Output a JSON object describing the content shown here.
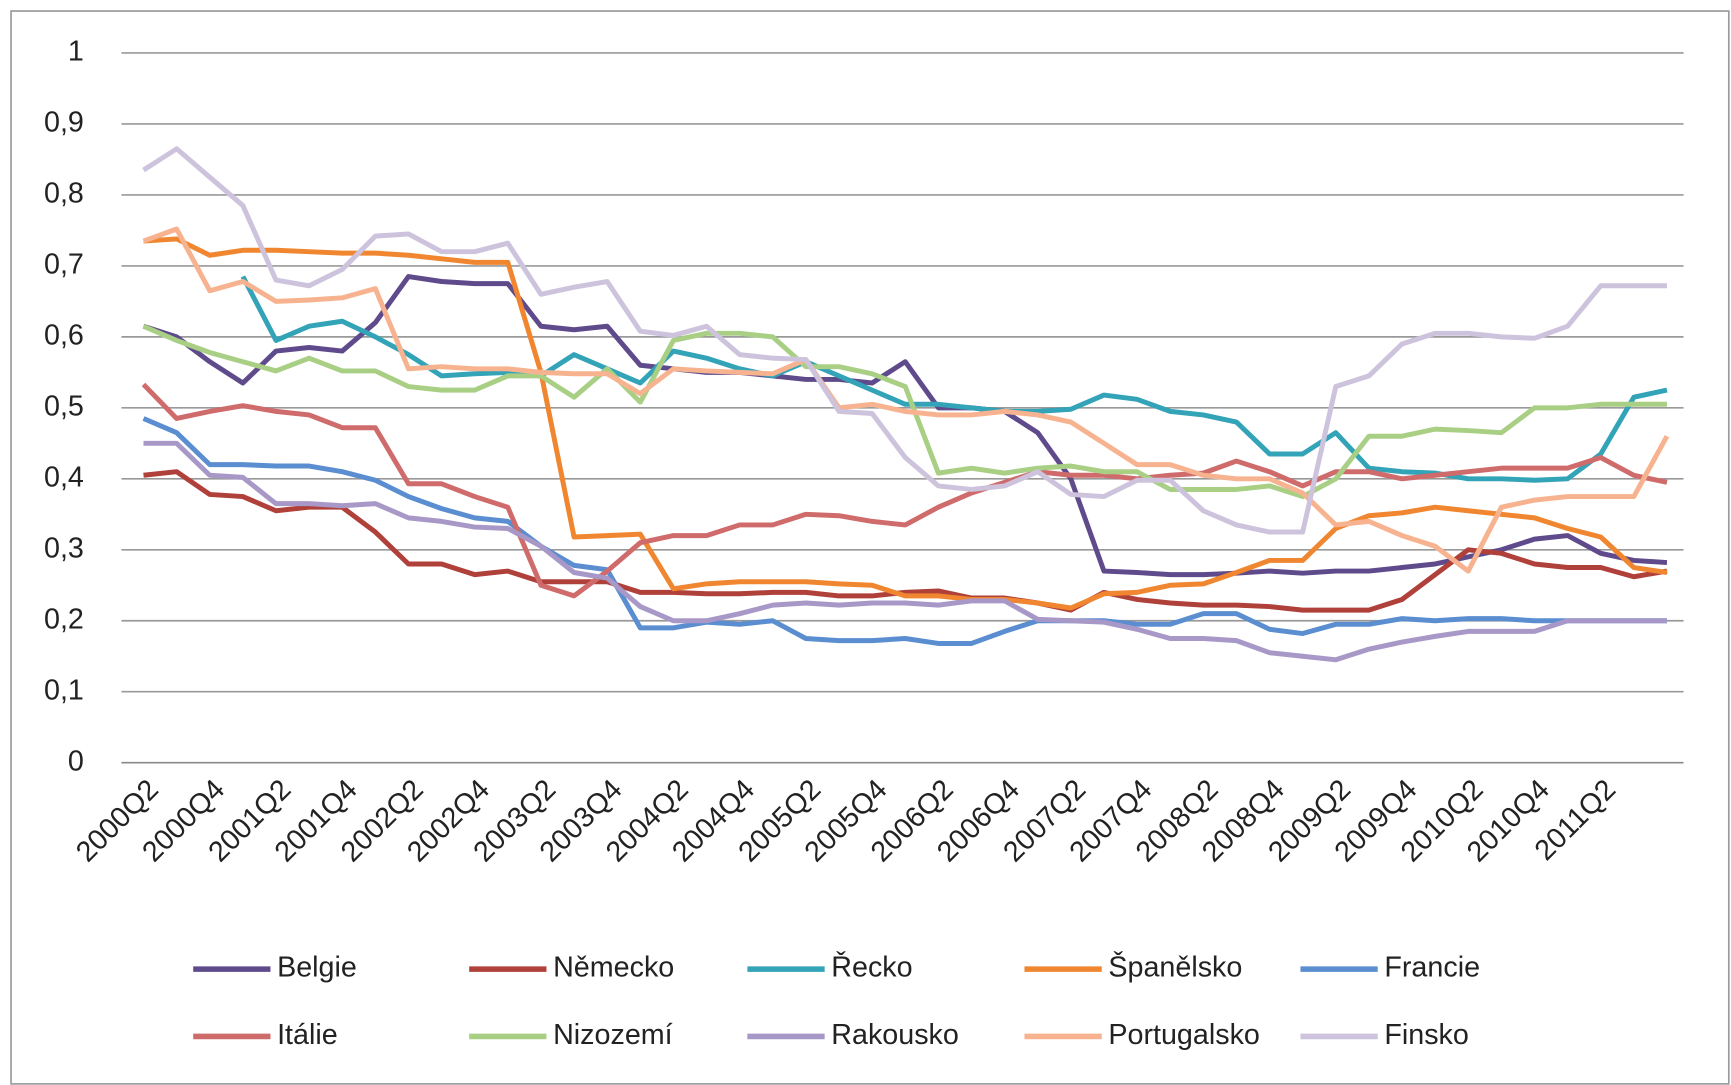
{
  "chart_data": {
    "type": "line",
    "categories": [
      "2000Q2",
      null,
      "2000Q4",
      null,
      "2001Q2",
      null,
      "2001Q4",
      null,
      "2002Q2",
      null,
      "2002Q4",
      null,
      "2003Q2",
      null,
      "2003Q4",
      null,
      "2004Q2",
      null,
      "2004Q4",
      null,
      "2005Q2",
      null,
      "2005Q4",
      null,
      "2006Q2",
      null,
      "2006Q4",
      null,
      "2007Q2",
      null,
      "2007Q4",
      null,
      "2008Q2",
      null,
      "2008Q4",
      null,
      "2009Q2",
      null,
      "2009Q4",
      null,
      "2010Q2",
      null,
      "2010Q4",
      null,
      "2011Q2",
      null,
      null
    ],
    "ylim": [
      0,
      1
    ],
    "yticks": [
      0,
      {
        "value": 0.1,
        "label": "0,1"
      },
      {
        "value": 0.2,
        "label": "0,2"
      },
      {
        "value": 0.3,
        "label": "0,3"
      },
      {
        "value": 0.4,
        "label": "0,4"
      },
      {
        "value": 0.5,
        "label": "0,5"
      },
      {
        "value": 0.6,
        "label": "0,6"
      },
      {
        "value": 0.7,
        "label": "0,7"
      },
      {
        "value": 0.8,
        "label": "0,8"
      },
      {
        "value": 0.9,
        "label": "0,9"
      },
      1
    ],
    "grid": true,
    "legend": "bottom",
    "series": [
      {
        "name": "Belgie",
        "color": "#5f4b8b",
        "values": [
          0.615,
          0.6,
          0.565,
          0.535,
          0.58,
          0.585,
          0.58,
          0.62,
          0.685,
          0.678,
          0.675,
          0.675,
          0.615,
          0.61,
          0.615,
          0.56,
          0.555,
          0.55,
          0.55,
          0.545,
          0.54,
          0.54,
          0.535,
          0.565,
          0.5,
          0.5,
          0.495,
          0.465,
          0.4,
          0.27,
          0.268,
          0.265,
          0.265,
          0.267,
          0.27,
          0.267,
          0.27,
          0.27,
          0.275,
          0.28,
          0.29,
          0.3,
          0.315,
          0.32,
          0.295,
          0.285,
          0.282
        ]
      },
      {
        "name": "Německo",
        "color": "#b0403a",
        "values": [
          0.405,
          0.41,
          0.378,
          0.375,
          0.355,
          0.36,
          0.36,
          0.325,
          0.28,
          0.28,
          0.265,
          0.27,
          0.255,
          0.255,
          0.255,
          0.24,
          0.24,
          0.238,
          0.238,
          0.24,
          0.24,
          0.235,
          0.235,
          0.24,
          0.242,
          0.232,
          0.232,
          0.225,
          0.215,
          0.24,
          0.23,
          0.225,
          0.222,
          0.222,
          0.22,
          0.215,
          0.215,
          0.215,
          0.23,
          0.265,
          0.3,
          0.295,
          0.28,
          0.275,
          0.275,
          0.262,
          0.27
        ]
      },
      {
        "name": "Řecko",
        "color": "#33a3b8",
        "values": [
          null,
          null,
          null,
          0.685,
          0.595,
          0.615,
          0.622,
          0.6,
          0.575,
          0.545,
          0.548,
          0.55,
          0.545,
          0.575,
          0.555,
          0.535,
          0.58,
          0.57,
          0.555,
          0.545,
          0.565,
          0.545,
          0.525,
          0.505,
          0.505,
          0.5,
          0.495,
          0.495,
          0.498,
          0.518,
          0.512,
          0.495,
          0.49,
          0.48,
          0.435,
          0.435,
          0.465,
          0.415,
          0.41,
          0.408,
          0.4,
          0.4,
          0.398,
          0.4,
          0.435,
          0.515,
          0.525
        ]
      },
      {
        "name": "Španělsko",
        "color": "#f0862f",
        "values": [
          0.735,
          0.738,
          0.715,
          0.722,
          0.722,
          0.72,
          0.718,
          0.718,
          0.715,
          0.71,
          0.705,
          0.705,
          0.55,
          0.318,
          0.32,
          0.322,
          0.245,
          0.252,
          0.255,
          0.255,
          0.255,
          0.252,
          0.25,
          0.235,
          0.235,
          0.23,
          0.23,
          0.225,
          0.218,
          0.238,
          0.24,
          0.25,
          0.252,
          0.268,
          0.285,
          0.285,
          0.33,
          0.348,
          0.352,
          0.36,
          0.355,
          0.35,
          0.345,
          0.33,
          0.318,
          0.275,
          0.268
        ]
      },
      {
        "name": "Francie",
        "color": "#5a8ed0",
        "values": [
          0.485,
          0.465,
          0.42,
          0.42,
          0.418,
          0.418,
          0.41,
          0.398,
          0.375,
          0.358,
          0.345,
          0.34,
          0.305,
          0.278,
          0.272,
          0.19,
          0.19,
          0.198,
          0.195,
          0.2,
          0.175,
          0.172,
          0.172,
          0.175,
          0.168,
          0.168,
          0.185,
          0.2,
          0.2,
          0.2,
          0.195,
          0.195,
          0.21,
          0.21,
          0.188,
          0.182,
          0.195,
          0.195,
          0.203,
          0.2,
          0.203,
          0.203,
          0.2,
          0.2,
          0.2,
          0.2,
          0.2
        ]
      },
      {
        "name": "Itálie",
        "color": "#d06b6b",
        "values": [
          0.533,
          0.485,
          0.495,
          0.503,
          0.495,
          0.49,
          0.472,
          0.472,
          0.393,
          0.393,
          0.375,
          0.36,
          0.25,
          0.235,
          0.27,
          0.31,
          0.32,
          0.32,
          0.335,
          0.335,
          0.35,
          0.348,
          0.34,
          0.335,
          0.36,
          0.38,
          0.395,
          0.41,
          0.405,
          0.405,
          0.4,
          0.405,
          0.408,
          0.425,
          0.41,
          0.39,
          0.41,
          0.41,
          0.4,
          0.405,
          0.41,
          0.415,
          0.415,
          0.415,
          0.43,
          0.405,
          0.395
        ]
      },
      {
        "name": "Nizozemí",
        "color": "#a9cf85",
        "values": [
          0.615,
          0.595,
          0.578,
          0.565,
          0.552,
          0.57,
          0.552,
          0.552,
          0.53,
          0.525,
          0.525,
          0.545,
          0.545,
          0.515,
          0.555,
          0.508,
          0.595,
          0.605,
          0.605,
          0.6,
          0.558,
          0.558,
          0.548,
          0.53,
          0.408,
          0.415,
          0.408,
          0.415,
          0.418,
          0.41,
          0.41,
          0.385,
          0.385,
          0.385,
          0.39,
          0.375,
          0.4,
          0.46,
          0.46,
          0.47,
          0.468,
          0.465,
          0.5,
          0.5,
          0.505,
          0.505,
          0.505
        ]
      },
      {
        "name": "Rakousko",
        "color": "#a898c8",
        "values": [
          0.45,
          0.45,
          0.405,
          0.402,
          0.365,
          0.365,
          0.362,
          0.365,
          0.345,
          0.34,
          0.332,
          0.33,
          0.305,
          0.268,
          0.26,
          0.22,
          0.2,
          0.2,
          0.21,
          0.222,
          0.225,
          0.222,
          0.225,
          0.225,
          0.222,
          0.228,
          0.228,
          0.202,
          0.2,
          0.198,
          0.188,
          0.175,
          0.175,
          0.172,
          0.155,
          0.15,
          0.145,
          0.16,
          0.17,
          0.178,
          0.185,
          0.185,
          0.185,
          0.2,
          0.2,
          0.2,
          0.2
        ]
      },
      {
        "name": "Portugalsko",
        "color": "#f7b38f",
        "values": [
          0.735,
          0.752,
          0.665,
          0.678,
          0.65,
          0.652,
          0.655,
          0.668,
          0.555,
          0.558,
          0.555,
          0.555,
          0.55,
          0.548,
          0.548,
          0.52,
          0.555,
          0.552,
          0.55,
          0.548,
          0.568,
          0.5,
          0.505,
          0.495,
          0.49,
          0.49,
          0.495,
          0.49,
          0.48,
          0.45,
          0.42,
          0.42,
          0.405,
          0.4,
          0.4,
          0.38,
          0.335,
          0.34,
          0.32,
          0.305,
          0.27,
          0.36,
          0.37,
          0.375,
          0.375,
          0.375,
          0.46
        ]
      },
      {
        "name": "Finsko",
        "color": "#cdc3dc",
        "values": [
          0.835,
          0.865,
          0.825,
          0.785,
          0.68,
          0.672,
          0.695,
          0.742,
          0.745,
          0.72,
          0.72,
          0.732,
          0.66,
          0.67,
          0.678,
          0.608,
          0.602,
          0.615,
          0.575,
          0.57,
          0.568,
          0.495,
          0.492,
          0.43,
          0.39,
          0.385,
          0.39,
          0.41,
          0.378,
          0.375,
          0.398,
          0.398,
          0.355,
          0.335,
          0.325,
          0.325,
          0.53,
          0.545,
          0.59,
          0.605,
          0.605,
          0.6,
          0.598,
          0.615,
          0.672,
          0.672,
          0.672
        ]
      }
    ]
  }
}
